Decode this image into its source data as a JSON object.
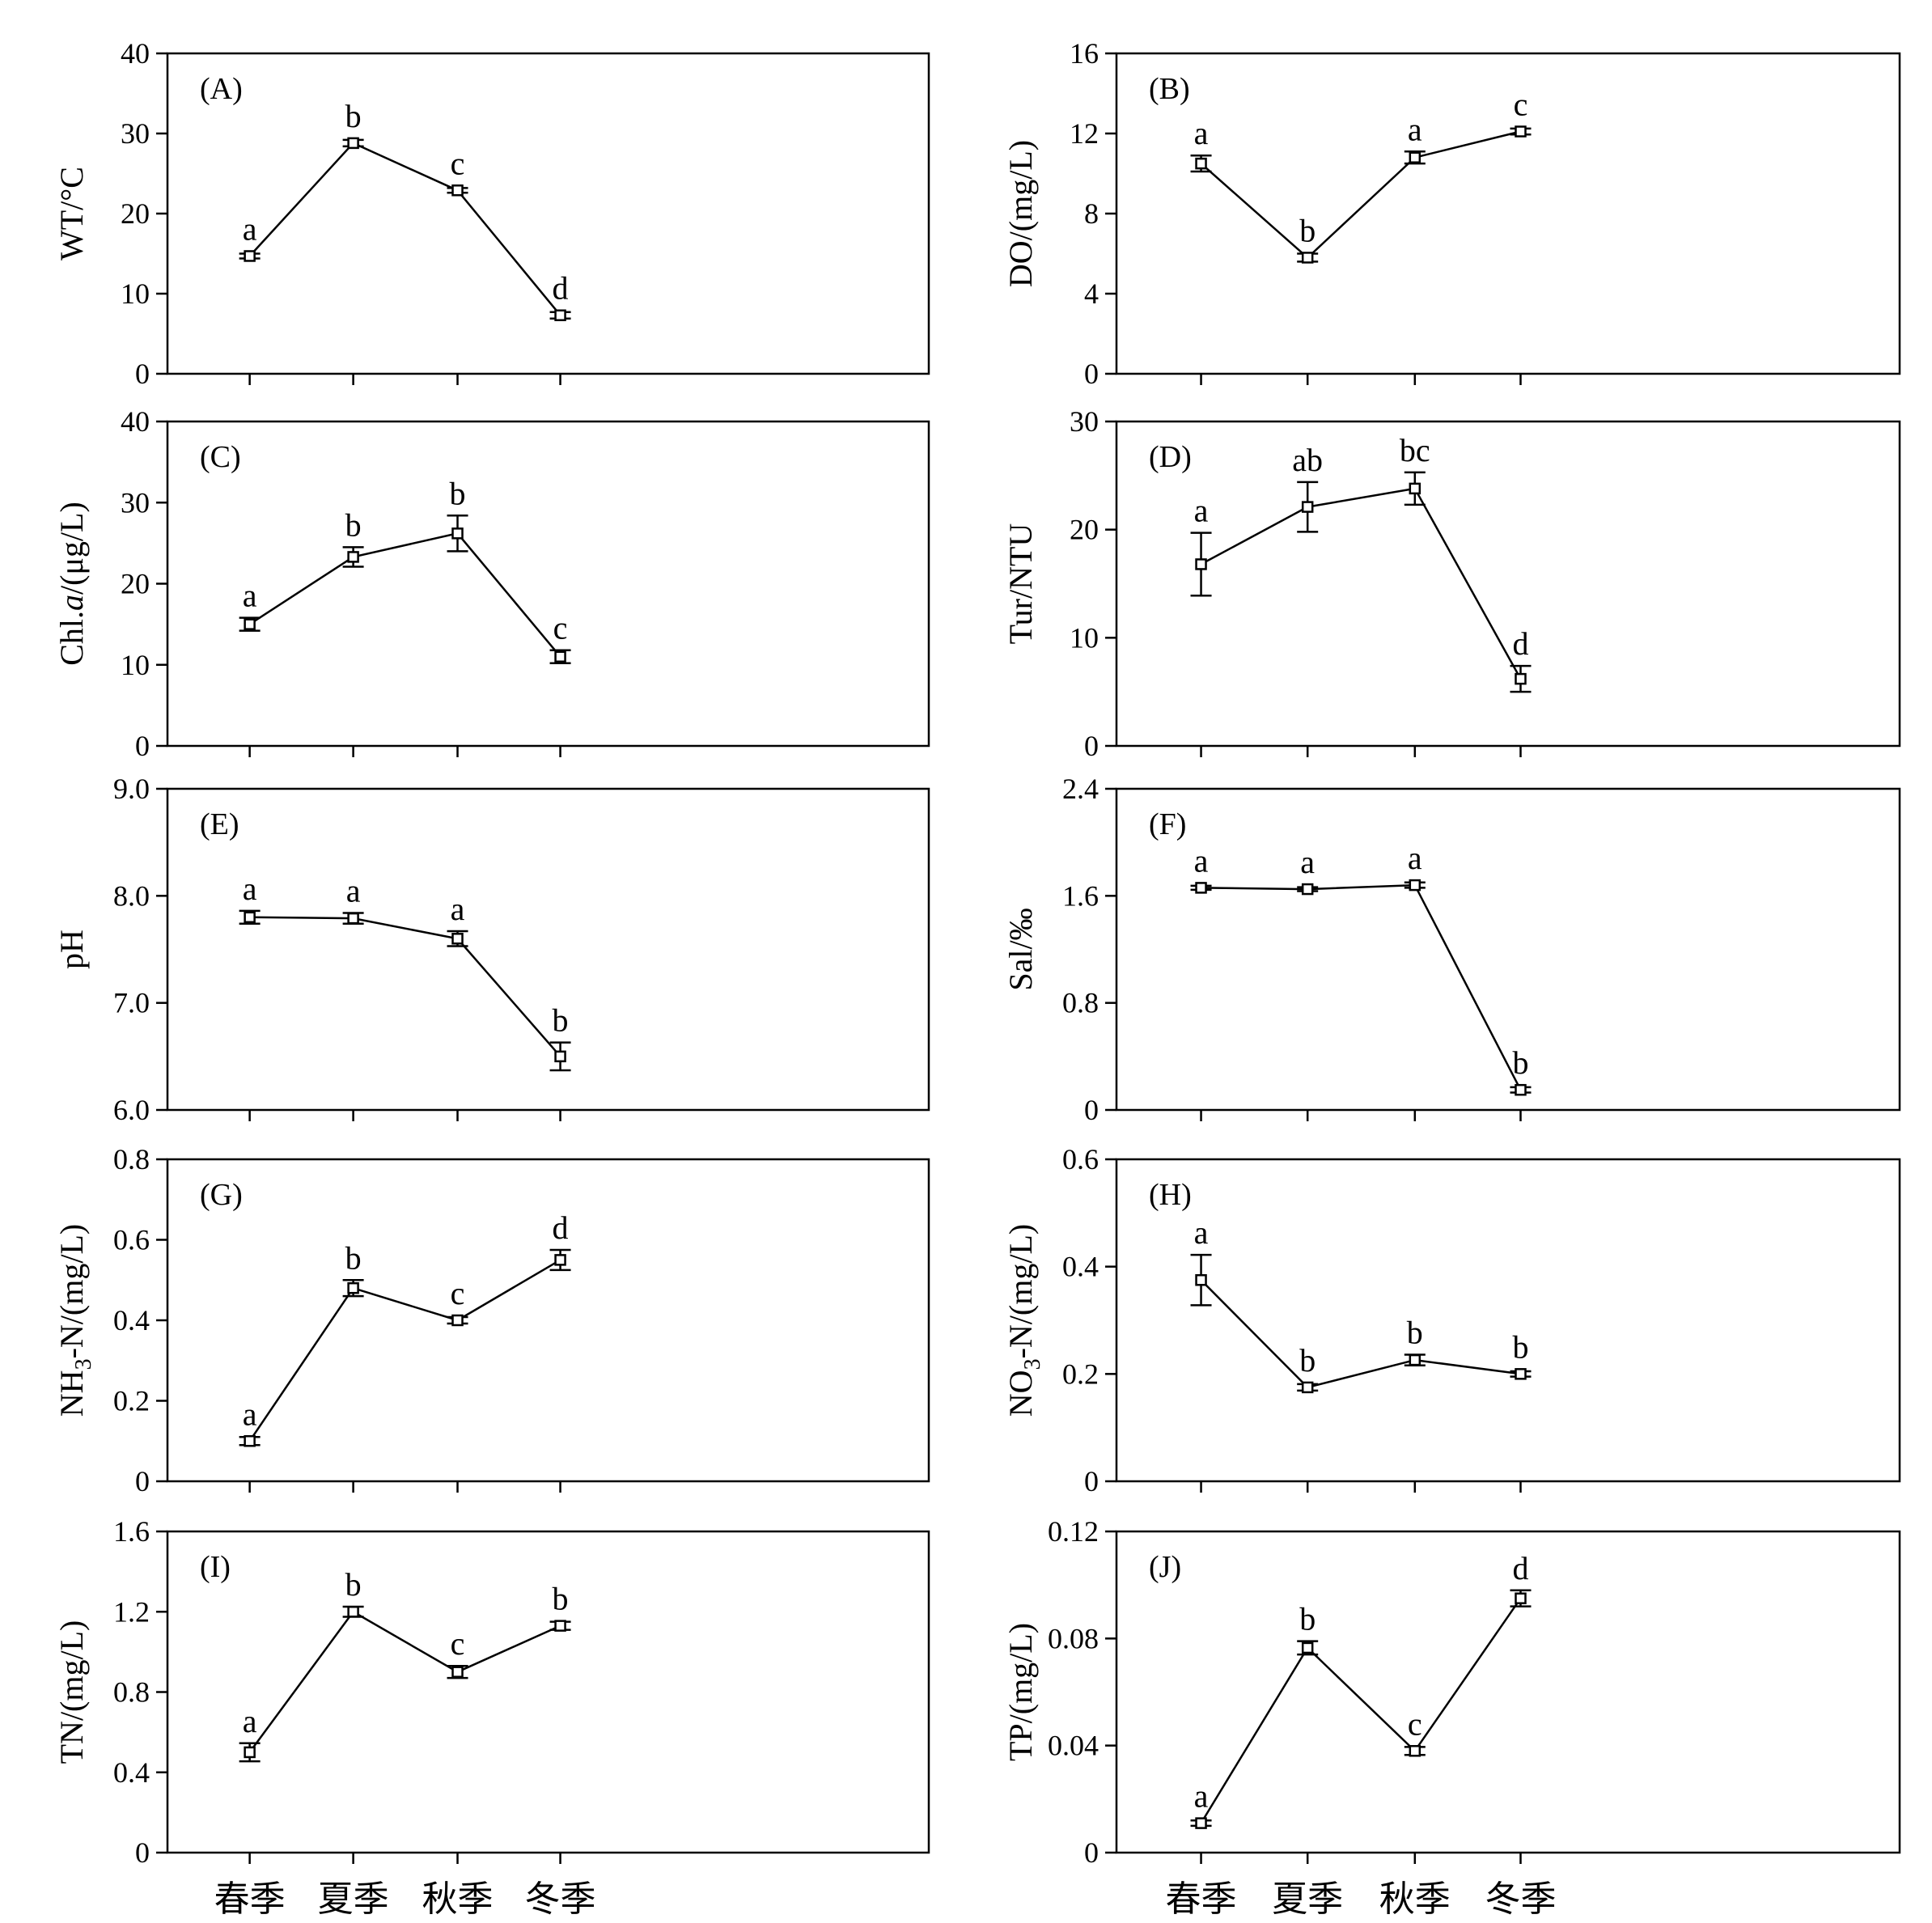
{
  "categories": [
    "春季",
    "夏季",
    "秋季",
    "冬季"
  ],
  "chart_data": [
    {
      "type": "line",
      "panel": "(A)",
      "ylabel": "WT/°C",
      "ylim": [
        0,
        40
      ],
      "yticks": [
        "0",
        "10",
        "20",
        "30",
        "40"
      ],
      "categories": [
        "春季",
        "夏季",
        "秋季",
        "冬季"
      ],
      "values": [
        14.7,
        28.8,
        22.9,
        7.3
      ],
      "errors": [
        0.3,
        0.4,
        0.3,
        0.4
      ],
      "letters": [
        "a",
        "b",
        "c",
        "d"
      ]
    },
    {
      "type": "line",
      "panel": "(B)",
      "ylabel": "DO/(mg/L)",
      "ylim": [
        0,
        16
      ],
      "yticks": [
        "0",
        "4",
        "8",
        "12",
        "16"
      ],
      "categories": [
        "春季",
        "夏季",
        "秋季",
        "冬季"
      ],
      "values": [
        10.5,
        5.8,
        10.8,
        12.1
      ],
      "errors": [
        0.4,
        0.2,
        0.3,
        0.15
      ],
      "letters": [
        "a",
        "b",
        "a",
        "c"
      ]
    },
    {
      "type": "line",
      "panel": "(C)",
      "ylabel_parts": [
        "Chl.",
        "a",
        "/(μg/L)"
      ],
      "ylim": [
        0,
        40
      ],
      "yticks": [
        "0",
        "10",
        "20",
        "30",
        "40"
      ],
      "categories": [
        "春季",
        "夏季",
        "秋季",
        "冬季"
      ],
      "values": [
        15.0,
        23.3,
        26.2,
        11.0
      ],
      "errors": [
        0.8,
        1.2,
        2.2,
        0.8
      ],
      "letters": [
        "a",
        "b",
        "b",
        "c"
      ]
    },
    {
      "type": "line",
      "panel": "(D)",
      "ylabel": "Tur/NTU",
      "ylim": [
        0,
        30
      ],
      "yticks": [
        "0",
        "10",
        "20",
        "30"
      ],
      "categories": [
        "春季",
        "夏季",
        "秋季",
        "冬季"
      ],
      "values": [
        16.8,
        22.1,
        23.8,
        6.2
      ],
      "errors": [
        2.9,
        2.3,
        1.5,
        1.2
      ],
      "letters": [
        "a",
        "ab",
        "bc",
        "d"
      ]
    },
    {
      "type": "line",
      "panel": "(E)",
      "ylabel": "pH",
      "ylim": [
        6,
        9
      ],
      "yticks": [
        "6.0",
        "7.0",
        "8.0",
        "9.0"
      ],
      "categories": [
        "春季",
        "夏季",
        "秋季",
        "冬季"
      ],
      "values": [
        7.8,
        7.79,
        7.6,
        6.5
      ],
      "errors": [
        0.06,
        0.05,
        0.07,
        0.13
      ],
      "letters": [
        "a",
        "a",
        "a",
        "b"
      ]
    },
    {
      "type": "line",
      "panel": "(F)",
      "ylabel": "Sal/‰",
      "ylim": [
        0,
        2.4
      ],
      "yticks": [
        "0",
        "0.8",
        "1.6",
        "2.4"
      ],
      "categories": [
        "春季",
        "夏季",
        "秋季",
        "冬季"
      ],
      "values": [
        1.66,
        1.65,
        1.68,
        0.15
      ],
      "errors": [
        0.015,
        0.015,
        0.02,
        0.02
      ],
      "letters": [
        "a",
        "a",
        "a",
        "b"
      ]
    },
    {
      "type": "line",
      "panel": "(G)",
      "ylabel_parts": [
        "NH",
        "3",
        "-N/(mg/L)"
      ],
      "ylim": [
        0,
        0.8
      ],
      "yticks": [
        "0",
        "0.2",
        "0.4",
        "0.6",
        "0.8"
      ],
      "categories": [
        "春季",
        "夏季",
        "秋季",
        "冬季"
      ],
      "values": [
        0.1,
        0.48,
        0.4,
        0.55
      ],
      "errors": [
        0.01,
        0.02,
        0.008,
        0.025
      ],
      "letters": [
        "a",
        "b",
        "c",
        "d"
      ]
    },
    {
      "type": "line",
      "panel": "(H)",
      "ylabel_parts": [
        "NO",
        "3",
        "-N/(mg/L)"
      ],
      "ylim": [
        0,
        0.6
      ],
      "yticks": [
        "0",
        "0.2",
        "0.4",
        "0.6"
      ],
      "categories": [
        "春季",
        "夏季",
        "秋季",
        "冬季"
      ],
      "values": [
        0.375,
        0.175,
        0.226,
        0.2
      ],
      "errors": [
        0.047,
        0.006,
        0.01,
        0.005
      ],
      "letters": [
        "a",
        "b",
        "b",
        "b"
      ]
    },
    {
      "type": "line",
      "panel": "(I)",
      "ylabel": "TN/(mg/L)",
      "ylim": [
        0,
        1.6
      ],
      "yticks": [
        "0",
        "0.4",
        "0.8",
        "1.2",
        "1.6"
      ],
      "categories": [
        "春季",
        "夏季",
        "秋季",
        "冬季"
      ],
      "values": [
        0.5,
        1.2,
        0.9,
        1.13
      ],
      "errors": [
        0.045,
        0.025,
        0.03,
        0.02
      ],
      "letters": [
        "a",
        "b",
        "c",
        "b"
      ]
    },
    {
      "type": "line",
      "panel": "(J)",
      "ylabel": "TP/(mg/L)",
      "ylim": [
        0,
        0.12
      ],
      "yticks": [
        "0",
        "0.04",
        "0.08",
        "0.12"
      ],
      "categories": [
        "春季",
        "夏季",
        "秋季",
        "冬季"
      ],
      "values": [
        0.011,
        0.0765,
        0.038,
        0.095
      ],
      "errors": [
        0.001,
        0.0025,
        0.0015,
        0.003
      ],
      "letters": [
        "a",
        "b",
        "c",
        "d"
      ]
    }
  ]
}
